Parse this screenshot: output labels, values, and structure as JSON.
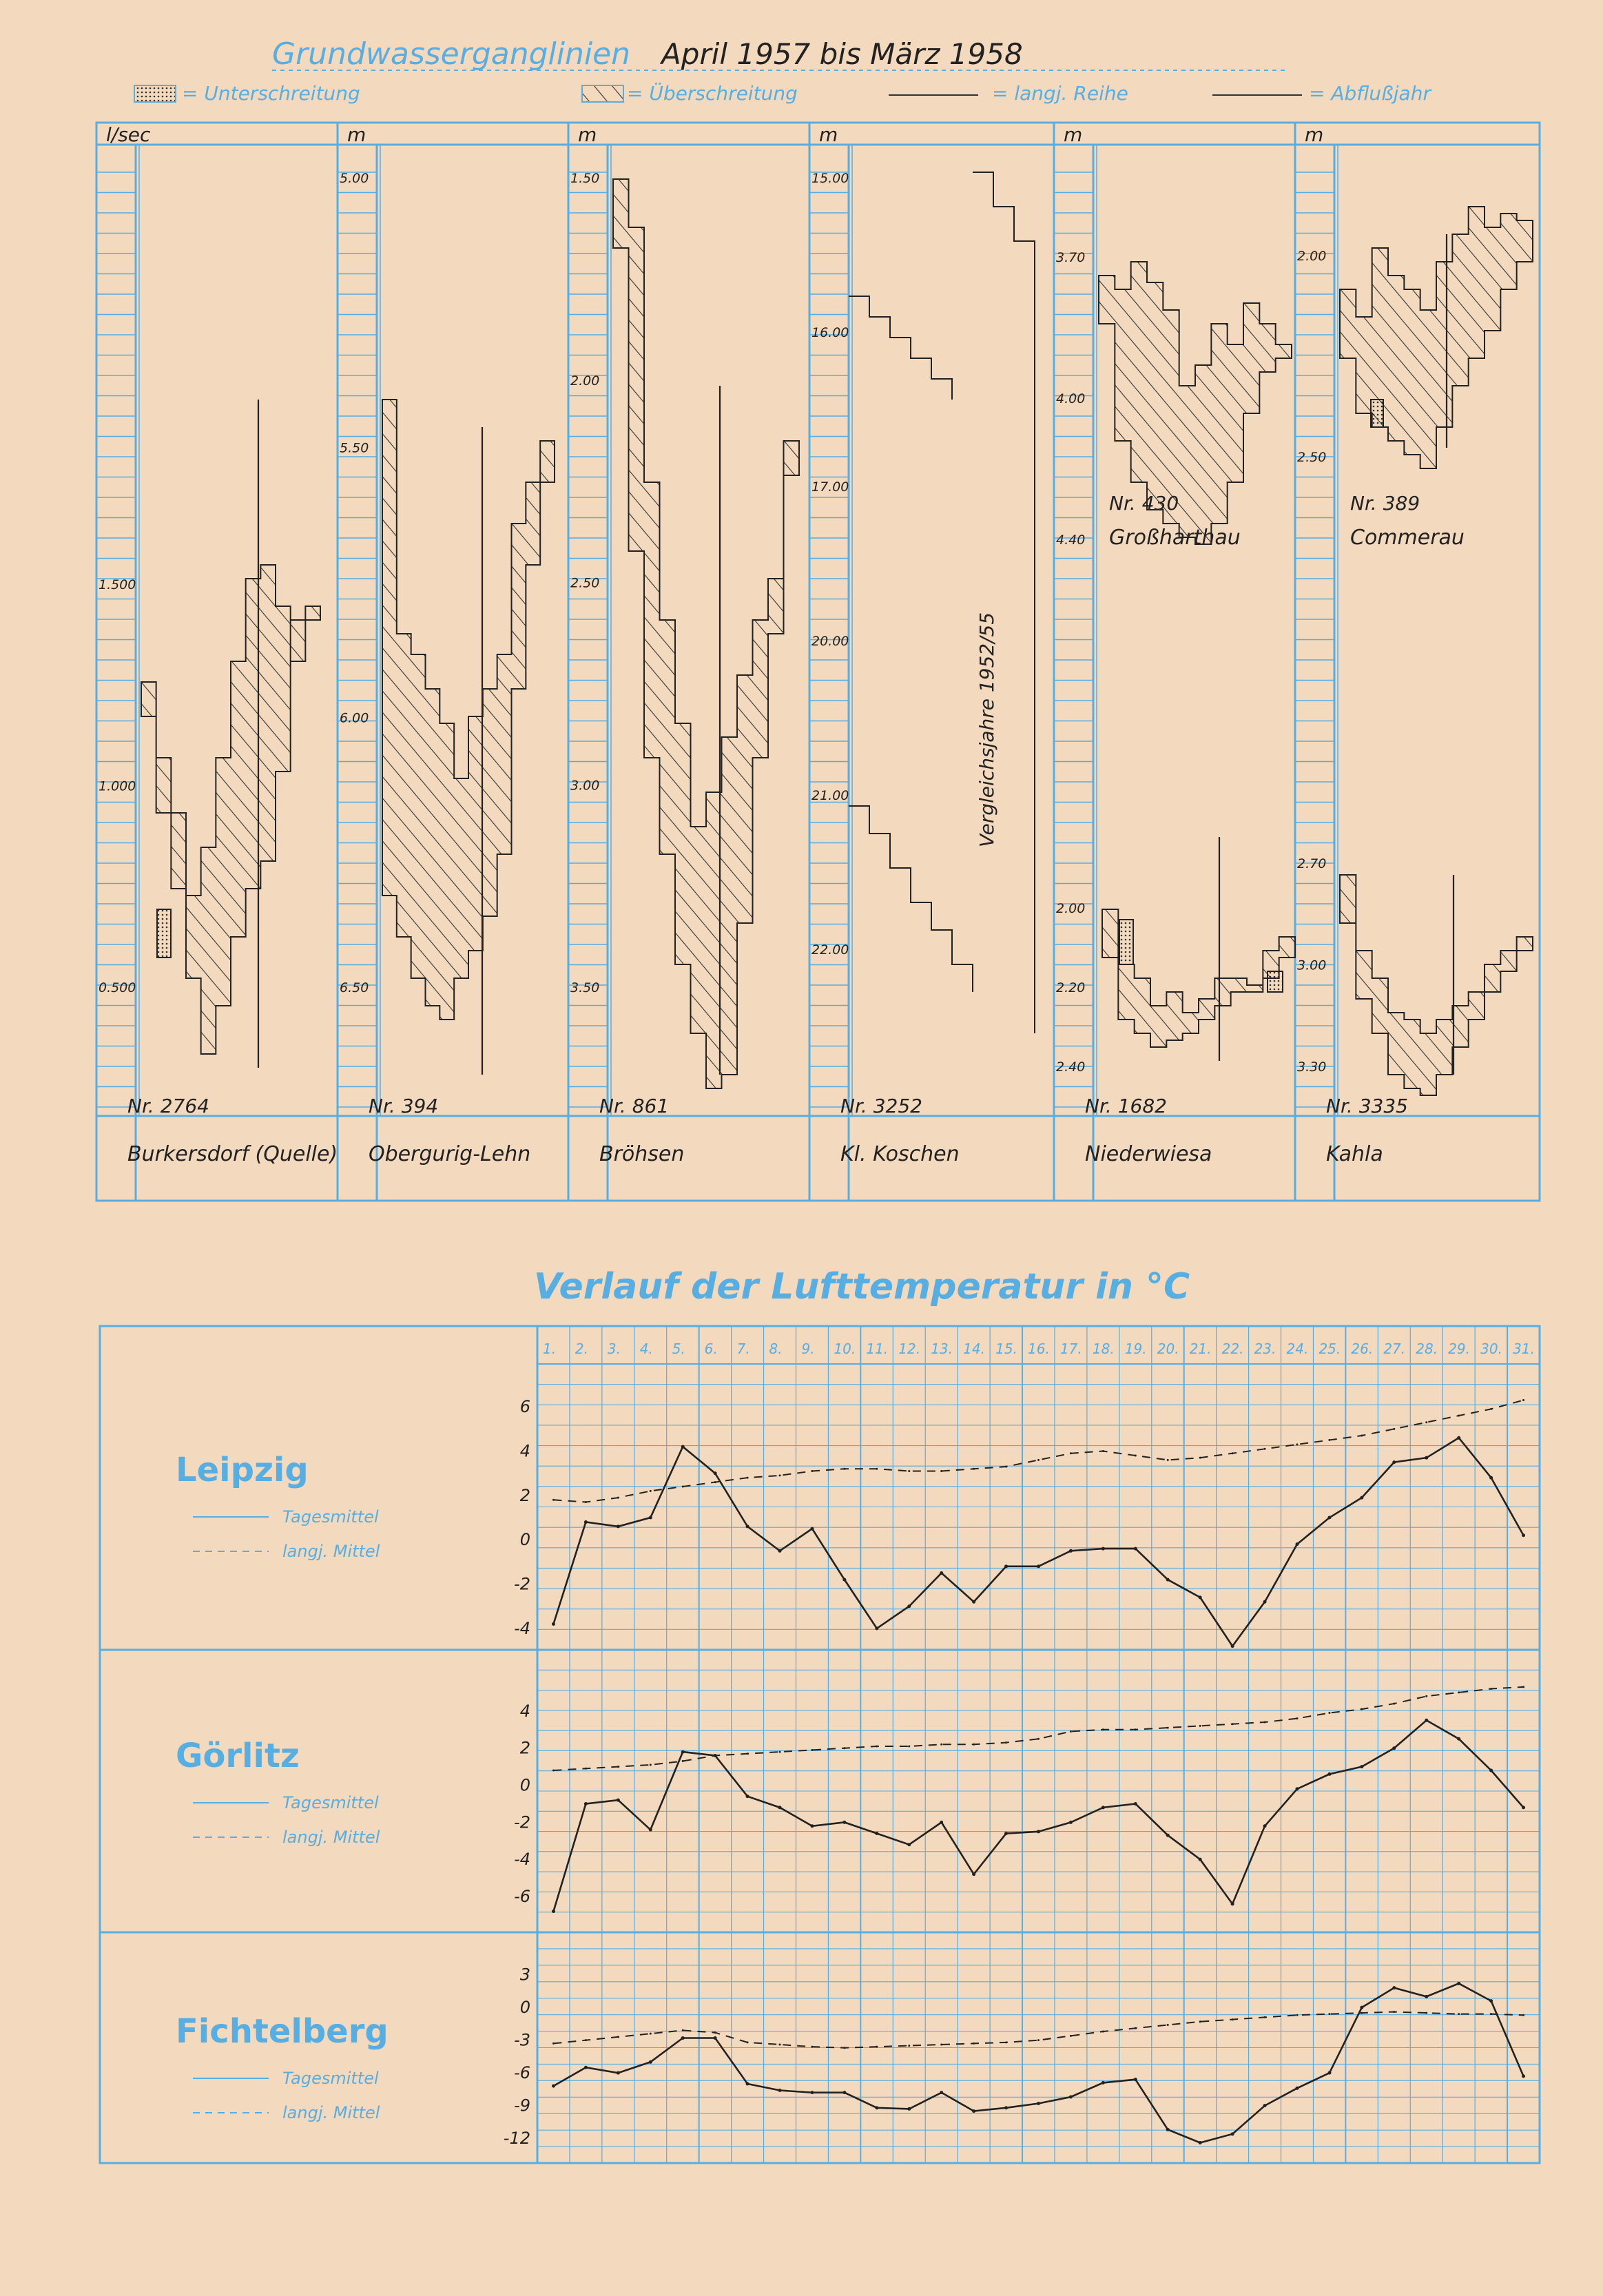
{
  "top": {
    "title": "Grundwasserganglinien",
    "period": "April 1957 bis März 1958",
    "legend": {
      "unter": "= Unterschreitung",
      "ueber": "= Überschreitung",
      "reihe": "= langj. Reihe",
      "jahr": "= Abflußjahr"
    },
    "comparison_note": "Vergleichsjahre 1952/55",
    "panels": [
      {
        "unit": "l/sec",
        "nr": "Nr. 2764",
        "name": "Burkersdorf (Quelle)",
        "ticks": [
          "1.500",
          "1.000",
          "0.500"
        ]
      },
      {
        "unit": "m",
        "nr": "Nr. 394",
        "name": "Obergurig-Lehn",
        "ticks": [
          "5.00",
          "5.50",
          "6.00",
          "6.50"
        ]
      },
      {
        "unit": "m",
        "nr": "Nr. 861",
        "name": "Bröhsen",
        "ticks": [
          "1.50",
          "2.00",
          "2.50",
          "3.00",
          "3.50"
        ]
      },
      {
        "unit": "m",
        "nr": "Nr. 3252",
        "name": "Kl. Koschen",
        "ticks": [
          "15.00",
          "16.00",
          "17.00",
          "20.00",
          "21.00",
          "22.00"
        ]
      },
      {
        "unit": "m",
        "nr_a": "Nr. 430",
        "name_a": "Großharthau",
        "ticks_a": [
          "3.70",
          "4.00",
          "4.40"
        ],
        "nr_b": "Nr. 1682",
        "name_b": "Niederwiesa",
        "ticks_b": [
          "2.00",
          "2.20",
          "2.40"
        ]
      },
      {
        "unit": "m",
        "nr_a": "Nr. 389",
        "name_a": "Commerau",
        "ticks_a": [
          "2.00",
          "2.50"
        ],
        "nr_b": "Nr. 3335",
        "name_b": "Kahla",
        "ticks_b": [
          "2.70",
          "3.00",
          "3.30"
        ]
      }
    ]
  },
  "bottom_title": "Verlauf der Lufttemperatur in °C",
  "days": [
    "1.",
    "2.",
    "3.",
    "4.",
    "5.",
    "6.",
    "7.",
    "8.",
    "9.",
    "10.",
    "11.",
    "12.",
    "13.",
    "14.",
    "15.",
    "16.",
    "17.",
    "18.",
    "19.",
    "20.",
    "21.",
    "22.",
    "23.",
    "24.",
    "25.",
    "26.",
    "27.",
    "28.",
    "29.",
    "30.",
    "31."
  ],
  "legend_labels": {
    "daily": "Tagesmittel",
    "longterm": "langj. Mittel"
  },
  "chart_data": [
    {
      "type": "line",
      "title": "Leipzig",
      "x": [
        1,
        2,
        3,
        4,
        5,
        6,
        7,
        8,
        9,
        10,
        11,
        12,
        13,
        14,
        15,
        16,
        17,
        18,
        19,
        20,
        21,
        22,
        23,
        24,
        25,
        26,
        27,
        28,
        29,
        30,
        31
      ],
      "yticks": [
        "6",
        "4",
        "2",
        "0",
        "-2",
        "-4"
      ],
      "ylim": [
        -4.5,
        7
      ],
      "series": [
        {
          "name": "Tagesmittel",
          "values": [
            -3.8,
            0.8,
            0.6,
            1.0,
            4.2,
            3.0,
            0.6,
            -0.5,
            0.5,
            -1.8,
            -4.0,
            -3.0,
            -1.5,
            -2.8,
            -1.2,
            -1.2,
            -0.5,
            -0.4,
            -0.4,
            -1.8,
            -2.6,
            -4.8,
            -2.8,
            -0.2,
            1.0,
            1.9,
            3.5,
            3.7,
            4.6,
            2.8,
            0.2
          ]
        },
        {
          "name": "langj. Mittel",
          "values": [
            1.8,
            1.7,
            1.9,
            2.2,
            2.4,
            2.6,
            2.8,
            2.9,
            3.1,
            3.2,
            3.2,
            3.1,
            3.1,
            3.2,
            3.3,
            3.6,
            3.9,
            4.0,
            3.8,
            3.6,
            3.7,
            3.9,
            4.1,
            4.3,
            4.5,
            4.7,
            5.0,
            5.3,
            5.6,
            5.9,
            6.3
          ]
        }
      ]
    },
    {
      "type": "line",
      "title": "Görlitz",
      "x": [
        1,
        2,
        3,
        4,
        5,
        6,
        7,
        8,
        9,
        10,
        11,
        12,
        13,
        14,
        15,
        16,
        17,
        18,
        19,
        20,
        21,
        22,
        23,
        24,
        25,
        26,
        27,
        28,
        29,
        30,
        31
      ],
      "yticks": [
        "4",
        "2",
        "0",
        "-2",
        "-4",
        "-6"
      ],
      "ylim": [
        -7,
        6
      ],
      "series": [
        {
          "name": "Tagesmittel",
          "values": [
            -6.8,
            -1.0,
            -0.8,
            -2.4,
            1.8,
            1.6,
            -0.6,
            -1.2,
            -2.2,
            -2.0,
            -2.6,
            -3.2,
            -2.0,
            -4.8,
            -2.6,
            -2.5,
            -2.0,
            -1.2,
            -1.0,
            -2.7,
            -4.0,
            -6.4,
            -2.2,
            -0.2,
            0.6,
            1.0,
            2.0,
            3.5,
            2.5,
            0.8,
            -1.2
          ]
        },
        {
          "name": "langj. Mittel",
          "values": [
            0.8,
            0.9,
            1.0,
            1.1,
            1.3,
            1.6,
            1.7,
            1.8,
            1.9,
            2.0,
            2.1,
            2.1,
            2.2,
            2.2,
            2.3,
            2.5,
            2.9,
            3.0,
            3.0,
            3.1,
            3.2,
            3.3,
            3.4,
            3.6,
            3.9,
            4.1,
            4.4,
            4.8,
            5.0,
            5.2,
            5.3
          ]
        }
      ]
    },
    {
      "type": "line",
      "title": "Fichtelberg",
      "x": [
        1,
        2,
        3,
        4,
        5,
        6,
        7,
        8,
        9,
        10,
        11,
        12,
        13,
        14,
        15,
        16,
        17,
        18,
        19,
        20,
        21,
        22,
        23,
        24,
        25,
        26,
        27,
        28,
        29,
        30,
        31
      ],
      "yticks": [
        "3",
        "0",
        "-3",
        "-6",
        "-9",
        "-12"
      ],
      "ylim": [
        -13,
        5
      ],
      "series": [
        {
          "name": "Tagesmittel",
          "values": [
            -7.2,
            -5.5,
            -6.0,
            -5.0,
            -2.8,
            -2.8,
            -7.0,
            -7.6,
            -7.8,
            -7.8,
            -9.2,
            -9.3,
            -7.8,
            -9.5,
            -9.2,
            -8.8,
            -8.2,
            -6.9,
            -6.6,
            -11.2,
            -12.4,
            -11.6,
            -9.0,
            -7.4,
            -6.0,
            0.0,
            1.8,
            1.0,
            2.2,
            0.6,
            -6.3
          ]
        },
        {
          "name": "langj. Mittel",
          "values": [
            -3.3,
            -3.0,
            -2.7,
            -2.4,
            -2.1,
            -2.3,
            -3.2,
            -3.4,
            -3.6,
            -3.7,
            -3.6,
            -3.5,
            -3.4,
            -3.3,
            -3.2,
            -3.0,
            -2.6,
            -2.2,
            -1.9,
            -1.6,
            -1.3,
            -1.1,
            -0.9,
            -0.7,
            -0.6,
            -0.5,
            -0.4,
            -0.5,
            -0.6,
            -0.6,
            -0.7
          ]
        }
      ]
    }
  ]
}
